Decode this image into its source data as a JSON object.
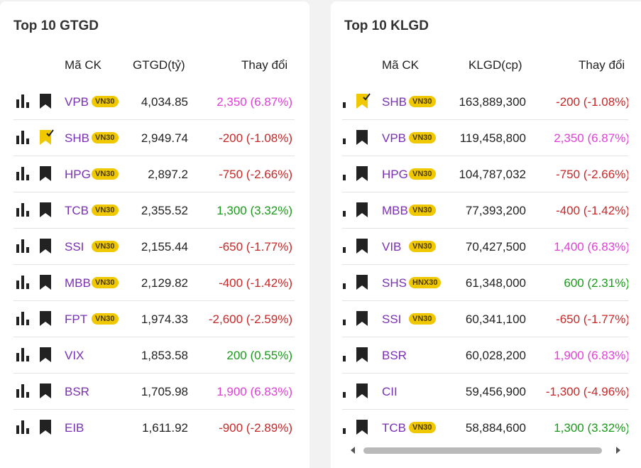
{
  "colors": {
    "ceiling": "#e040d8",
    "up": "#1a9a1a",
    "down": "#c62828",
    "badge": "#f0c800",
    "symbol": "#7b2fb5"
  },
  "left": {
    "title": "Top 10 GTGD",
    "headers": {
      "symbol": "Mã CK",
      "value": "GTGD(tỷ)",
      "change": "Thay đổi"
    },
    "rows": [
      {
        "symbol": "VPB",
        "badge": "VN30",
        "value": "4,034.85",
        "change": "2,350 (6.87%)",
        "trend": "up-ceil",
        "bookmark": "bookmark-icon"
      },
      {
        "symbol": "SHB",
        "badge": "VN30",
        "value": "2,949.74",
        "change": "-200 (-1.08%)",
        "trend": "down",
        "bookmark": "bookmark-checked-icon"
      },
      {
        "symbol": "HPG",
        "badge": "VN30",
        "value": "2,897.2",
        "change": "-750 (-2.66%)",
        "trend": "down",
        "bookmark": "bookmark-icon"
      },
      {
        "symbol": "TCB",
        "badge": "VN30",
        "value": "2,355.52",
        "change": "1,300 (3.32%)",
        "trend": "up",
        "bookmark": "bookmark-icon"
      },
      {
        "symbol": "SSI",
        "badge": "VN30",
        "value": "2,155.44",
        "change": "-650 (-1.77%)",
        "trend": "down",
        "bookmark": "bookmark-icon"
      },
      {
        "symbol": "MBB",
        "badge": "VN30",
        "value": "2,129.82",
        "change": "-400 (-1.42%)",
        "trend": "down",
        "bookmark": "bookmark-icon"
      },
      {
        "symbol": "FPT",
        "badge": "VN30",
        "value": "1,974.33",
        "change": "-2,600 (-2.59%)",
        "trend": "down",
        "bookmark": "bookmark-icon"
      },
      {
        "symbol": "VIX",
        "badge": "",
        "value": "1,853.58",
        "change": "200 (0.55%)",
        "trend": "up",
        "bookmark": "bookmark-icon"
      },
      {
        "symbol": "BSR",
        "badge": "",
        "value": "1,705.98",
        "change": "1,900 (6.83%)",
        "trend": "up-ceil",
        "bookmark": "bookmark-icon"
      },
      {
        "symbol": "EIB",
        "badge": "",
        "value": "1,611.92",
        "change": "-900 (-2.89%)",
        "trend": "down",
        "bookmark": "bookmark-icon"
      }
    ]
  },
  "right": {
    "title": "Top 10 KLGD",
    "headers": {
      "symbol": "Mã CK",
      "value": "KLGD(cp)",
      "change": "Thay đổi"
    },
    "rows": [
      {
        "symbol": "SHB",
        "badge": "VN30",
        "value": "163,889,300",
        "change": "-200 (-1.08%)",
        "trend": "down",
        "bookmark": "bookmark-checked-icon"
      },
      {
        "symbol": "VPB",
        "badge": "VN30",
        "value": "119,458,800",
        "change": "2,350 (6.87%)",
        "trend": "up-ceil",
        "bookmark": "bookmark-icon"
      },
      {
        "symbol": "HPG",
        "badge": "VN30",
        "value": "104,787,032",
        "change": "-750 (-2.66%)",
        "trend": "down",
        "bookmark": "bookmark-icon"
      },
      {
        "symbol": "MBB",
        "badge": "VN30",
        "value": "77,393,200",
        "change": "-400 (-1.42%)",
        "trend": "down",
        "bookmark": "bookmark-icon"
      },
      {
        "symbol": "VIB",
        "badge": "VN30",
        "value": "70,427,500",
        "change": "1,400 (6.83%)",
        "trend": "up-ceil",
        "bookmark": "bookmark-icon"
      },
      {
        "symbol": "SHS",
        "badge": "HNX30",
        "value": "61,348,000",
        "change": "600 (2.31%)",
        "trend": "up",
        "bookmark": "bookmark-icon"
      },
      {
        "symbol": "SSI",
        "badge": "VN30",
        "value": "60,341,100",
        "change": "-650 (-1.77%)",
        "trend": "down",
        "bookmark": "bookmark-icon"
      },
      {
        "symbol": "BSR",
        "badge": "",
        "value": "60,028,200",
        "change": "1,900 (6.83%)",
        "trend": "up-ceil",
        "bookmark": "bookmark-icon"
      },
      {
        "symbol": "CII",
        "badge": "",
        "value": "59,456,900",
        "change": "-1,300 (-4.96%)",
        "trend": "down",
        "bookmark": "bookmark-icon"
      },
      {
        "symbol": "TCB",
        "badge": "VN30",
        "value": "58,884,600",
        "change": "1,300 (3.32%)",
        "trend": "up",
        "bookmark": "bookmark-icon"
      }
    ]
  }
}
